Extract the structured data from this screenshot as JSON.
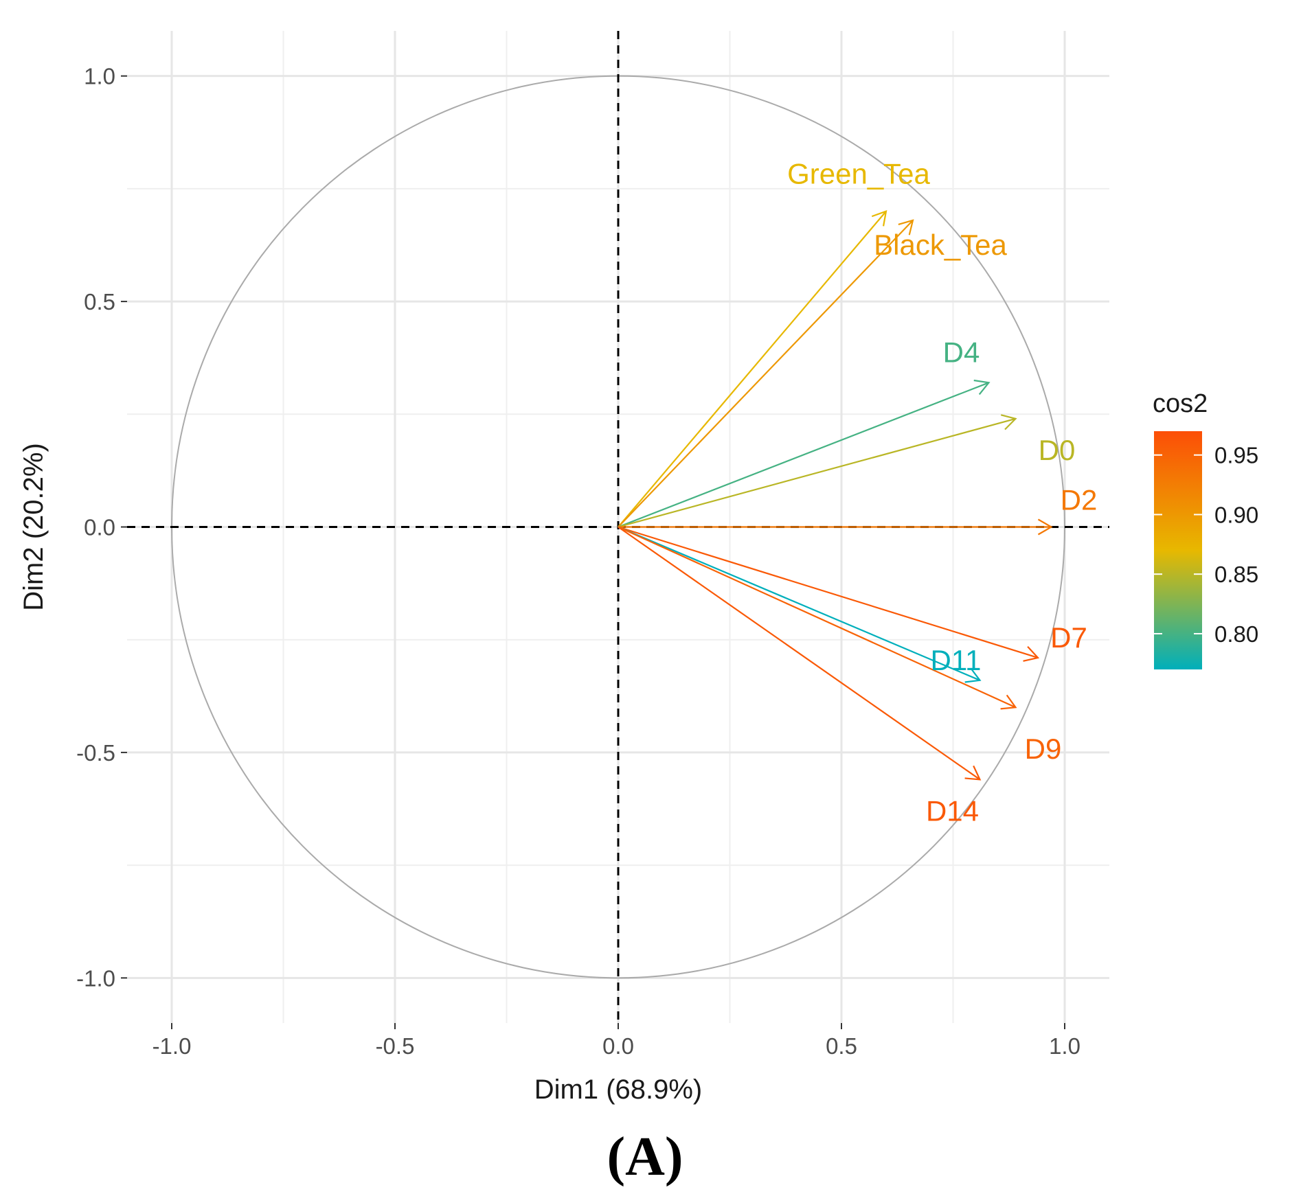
{
  "chart_data": {
    "type": "pca-variable-correlation-circle",
    "xlabel": "Dim1 (68.9%)",
    "ylabel": "Dim2 (20.2%)",
    "xlim": [
      -1.1,
      1.1
    ],
    "ylim": [
      -1.1,
      1.1
    ],
    "x_ticks": [
      -1.0,
      -0.5,
      0.0,
      0.5,
      1.0
    ],
    "y_ticks": [
      -1.0,
      -0.5,
      0.0,
      0.5,
      1.0
    ],
    "tick_labels_x": [
      "-1.0",
      "-0.5",
      "0.0",
      "0.5",
      "1.0"
    ],
    "tick_labels_y": [
      "-1.0",
      "-0.5",
      "0.0",
      "0.5",
      "1.0"
    ],
    "grid": true,
    "unit_circle": true,
    "reference_lines": [
      "x=0",
      "y=0"
    ],
    "variables": [
      {
        "name": "Green_Tea",
        "x": 0.6,
        "y": 0.7,
        "cos2": 0.87
      },
      {
        "name": "Black_Tea",
        "x": 0.66,
        "y": 0.68,
        "cos2": 0.9
      },
      {
        "name": "D4",
        "x": 0.83,
        "y": 0.32,
        "cos2": 0.8
      },
      {
        "name": "D0",
        "x": 0.89,
        "y": 0.24,
        "cos2": 0.85
      },
      {
        "name": "D2",
        "x": 0.97,
        "y": 0.0,
        "cos2": 0.93
      },
      {
        "name": "D7",
        "x": 0.94,
        "y": -0.29,
        "cos2": 0.96
      },
      {
        "name": "D11",
        "x": 0.81,
        "y": -0.34,
        "cos2": 0.77
      },
      {
        "name": "D9",
        "x": 0.89,
        "y": -0.4,
        "cos2": 0.95
      },
      {
        "name": "D14",
        "x": 0.81,
        "y": -0.56,
        "cos2": 0.96
      }
    ],
    "legend": {
      "title": "cos2",
      "position": "right",
      "range": [
        0.77,
        0.97
      ],
      "ticks": [
        0.8,
        0.85,
        0.9,
        0.95
      ],
      "tick_labels": [
        "0.80",
        "0.85",
        "0.90",
        "0.95"
      ],
      "colors": {
        "low": "#00AFBB",
        "mid": "#E7B800",
        "high": "#FC4E07"
      }
    }
  },
  "caption": "(A)"
}
